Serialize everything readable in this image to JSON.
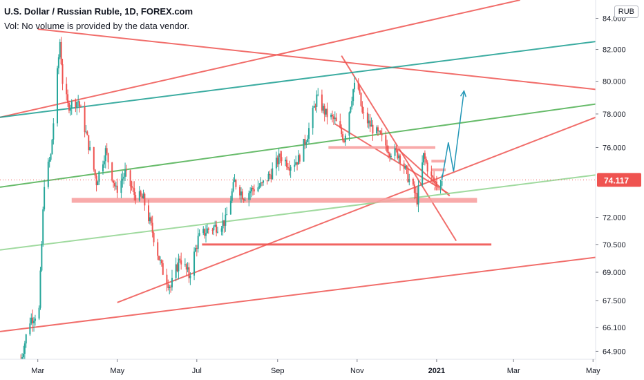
{
  "header": {
    "title": "U.S. Dollar / Russian Ruble, 1D, FOREX.com",
    "volume_note": "Vol: No volume is provided by the data vendor."
  },
  "currency_button": "RUB",
  "price_label": "74.117",
  "colors": {
    "up": "#26a69a",
    "down": "#ef5350",
    "trend_red": "#ef5350",
    "zone_pink": "#f7a1a1",
    "teal": "#1a9e90",
    "green": "#4caf50",
    "light_green": "#8fd38e",
    "blue_arrow": "#2196b6",
    "last_price_bg": "#ef5350"
  },
  "chart_data": {
    "type": "candlestick",
    "y_axis_label_values": [
      "84.000",
      "82.000",
      "80.000",
      "78.000",
      "76.000",
      "74.117",
      "72.000",
      "70.500",
      "69.000",
      "67.500",
      "66.100",
      "64.900"
    ],
    "y_ticks": [
      84.0,
      82.0,
      80.0,
      78.0,
      76.0,
      72.0,
      70.5,
      69.0,
      67.5,
      66.1,
      64.9
    ],
    "y_scale": "log",
    "ylim": [
      64.5,
      85.2
    ],
    "x_ticks": [
      {
        "label": "Mar",
        "date": "2020-03-01",
        "bold": false
      },
      {
        "label": "May",
        "date": "2020-05-01",
        "bold": false
      },
      {
        "label": "Jul",
        "date": "2020-07-01",
        "bold": false
      },
      {
        "label": "Sep",
        "date": "2020-09-01",
        "bold": false
      },
      {
        "label": "Nov",
        "date": "2020-11-01",
        "bold": false
      },
      {
        "label": "2021",
        "date": "2021-01-01",
        "bold": true
      },
      {
        "label": "Mar",
        "date": "2021-03-01",
        "bold": false
      },
      {
        "label": "May",
        "date": "2021-05-01",
        "bold": false
      }
    ],
    "xlim": [
      "2020-02-01",
      "2021-05-03"
    ],
    "last_price": 74.117,
    "price_path": [
      [
        "2020-02-17",
        64.5
      ],
      [
        "2020-02-24",
        66.5
      ],
      [
        "2020-03-02",
        67.0
      ],
      [
        "2020-03-06",
        74.0
      ],
      [
        "2020-03-11",
        75.5
      ],
      [
        "2020-03-18",
        82.5
      ],
      [
        "2020-03-20",
        80.0
      ],
      [
        "2020-03-24",
        78.5
      ],
      [
        "2020-04-01",
        78.8
      ],
      [
        "2020-04-08",
        76.5
      ],
      [
        "2020-04-15",
        74.0
      ],
      [
        "2020-04-22",
        75.8
      ],
      [
        "2020-04-30",
        73.5
      ],
      [
        "2020-05-07",
        74.5
      ],
      [
        "2020-05-14",
        73.3
      ],
      [
        "2020-05-21",
        73.0
      ],
      [
        "2020-05-28",
        71.2
      ],
      [
        "2020-06-04",
        69.2
      ],
      [
        "2020-06-11",
        68.2
      ],
      [
        "2020-06-18",
        69.8
      ],
      [
        "2020-06-25",
        68.8
      ],
      [
        "2020-07-02",
        70.8
      ],
      [
        "2020-07-09",
        71.3
      ],
      [
        "2020-07-16",
        71.5
      ],
      [
        "2020-07-23",
        71.8
      ],
      [
        "2020-07-30",
        74.0
      ],
      [
        "2020-08-06",
        73.2
      ],
      [
        "2020-08-13",
        73.6
      ],
      [
        "2020-08-20",
        73.8
      ],
      [
        "2020-08-27",
        74.5
      ],
      [
        "2020-09-03",
        75.5
      ],
      [
        "2020-09-10",
        75.0
      ],
      [
        "2020-09-17",
        75.3
      ],
      [
        "2020-09-24",
        76.8
      ],
      [
        "2020-10-01",
        79.0
      ],
      [
        "2020-10-08",
        78.0
      ],
      [
        "2020-10-15",
        77.6
      ],
      [
        "2020-10-22",
        76.5
      ],
      [
        "2020-10-29",
        79.5
      ],
      [
        "2020-11-01",
        80.0
      ],
      [
        "2020-11-05",
        78.0
      ],
      [
        "2020-11-12",
        77.2
      ],
      [
        "2020-11-19",
        76.6
      ],
      [
        "2020-11-26",
        75.8
      ],
      [
        "2020-12-03",
        75.6
      ],
      [
        "2020-12-10",
        74.3
      ],
      [
        "2020-12-17",
        73.0
      ],
      [
        "2020-12-22",
        75.5
      ],
      [
        "2020-12-28",
        74.2
      ],
      [
        "2021-01-01",
        73.9
      ],
      [
        "2021-01-05",
        74.117
      ]
    ],
    "drawings": {
      "trendlines": [
        {
          "color": "trend_red",
          "from": [
            "2020-03-01",
            83.3
          ],
          "to": [
            "2021-05-03",
            79.5
          ]
        },
        {
          "color": "trend_red",
          "from": [
            "2020-02-01",
            77.8
          ],
          "to": [
            "2021-03-06",
            85.2
          ]
        },
        {
          "color": "trend_red",
          "from": [
            "2020-05-01",
            67.4
          ],
          "to": [
            "2021-05-03",
            77.8
          ]
        },
        {
          "color": "trend_red",
          "from": [
            "2020-10-20",
            81.6
          ],
          "to": [
            "2021-01-16",
            70.7
          ]
        },
        {
          "color": "trend_red",
          "from": [
            "2020-10-15",
            77.4
          ],
          "to": [
            "2021-01-11",
            73.3
          ]
        },
        {
          "color": "trend_red",
          "from": [
            "2020-12-01",
            76.0
          ],
          "to": [
            "2021-01-11",
            73.2
          ]
        },
        {
          "color": "trend_red",
          "from": [
            "2020-02-01",
            65.9
          ],
          "to": [
            "2021-05-03",
            69.8
          ]
        },
        {
          "color": "teal",
          "from": [
            "2020-02-01",
            77.8
          ],
          "to": [
            "2021-05-03",
            82.5
          ]
        },
        {
          "color": "green",
          "from": [
            "2020-02-01",
            73.7
          ],
          "to": [
            "2021-05-03",
            78.6
          ]
        },
        {
          "color": "light_green",
          "from": [
            "2020-02-01",
            70.2
          ],
          "to": [
            "2021-05-03",
            74.4
          ]
        }
      ],
      "zones": [
        {
          "color": "zone_pink",
          "from": "2020-03-27",
          "to": "2021-02-01",
          "y": 72.95,
          "thickness": 7
        },
        {
          "color": "trend_red",
          "from": "2020-07-05",
          "to": "2021-02-12",
          "y": 70.5,
          "thickness": 3
        },
        {
          "color": "zone_pink",
          "from": "2020-10-10",
          "to": "2020-12-31",
          "y": 76.0,
          "thickness": 4
        },
        {
          "color": "zone_pink",
          "from": "2020-12-28",
          "to": "2021-01-08",
          "y": 75.2,
          "thickness": 4
        },
        {
          "color": "zone_pink",
          "from": "2020-12-28",
          "to": "2021-01-08",
          "y": 74.7,
          "thickness": 4
        },
        {
          "color": "zone_pink",
          "from": "2020-12-30",
          "to": "2021-01-05",
          "y": 73.6,
          "thickness": 4
        }
      ],
      "projection": {
        "color": "blue_arrow",
        "points": [
          [
            "2021-01-05",
            74.117
          ],
          [
            "2021-01-10",
            76.3
          ],
          [
            "2021-01-14",
            74.6
          ],
          [
            "2021-01-22",
            79.4
          ]
        ]
      }
    }
  }
}
